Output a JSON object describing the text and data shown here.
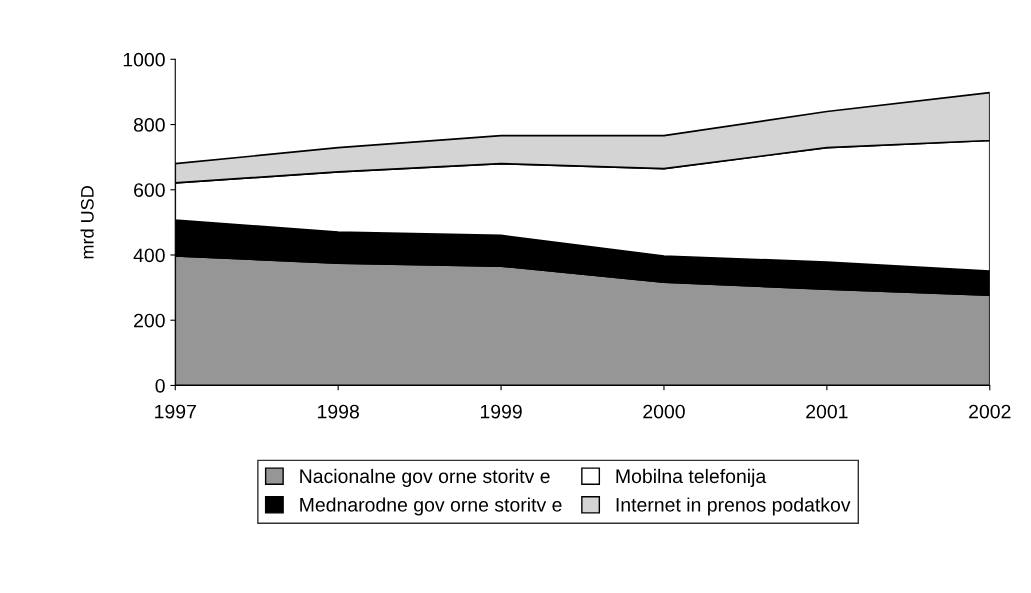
{
  "chart_data": {
    "type": "area",
    "stacked": true,
    "ylabel": "mrd USD",
    "x": [
      1997,
      1998,
      1999,
      2000,
      2001,
      2002
    ],
    "xlim": [
      1997,
      2002
    ],
    "xticks": [
      1997,
      1998,
      1999,
      2000,
      2001,
      2002
    ],
    "ylim": [
      0,
      1000
    ],
    "yticks": [
      0,
      200,
      400,
      600,
      800,
      1000
    ],
    "grid": false,
    "legend": "bottom",
    "series": [
      {
        "name": "Nacionalne gov orne storitv e",
        "color": "#969696",
        "values": [
          397,
          375,
          366,
          317,
          295,
          277
        ]
      },
      {
        "name": "Mednarodne gov orne storitv e",
        "color": "#000000",
        "values": [
          110,
          95,
          94,
          80,
          83,
          74
        ]
      },
      {
        "name": "Mobilna telefonija",
        "color": "#ffffff",
        "values": [
          114,
          185,
          220,
          268,
          351,
          400
        ]
      },
      {
        "name": "Internet in prenos podatkov",
        "color": "#d4d4d4",
        "values": [
          59,
          74,
          86,
          101,
          111,
          147
        ]
      }
    ]
  }
}
